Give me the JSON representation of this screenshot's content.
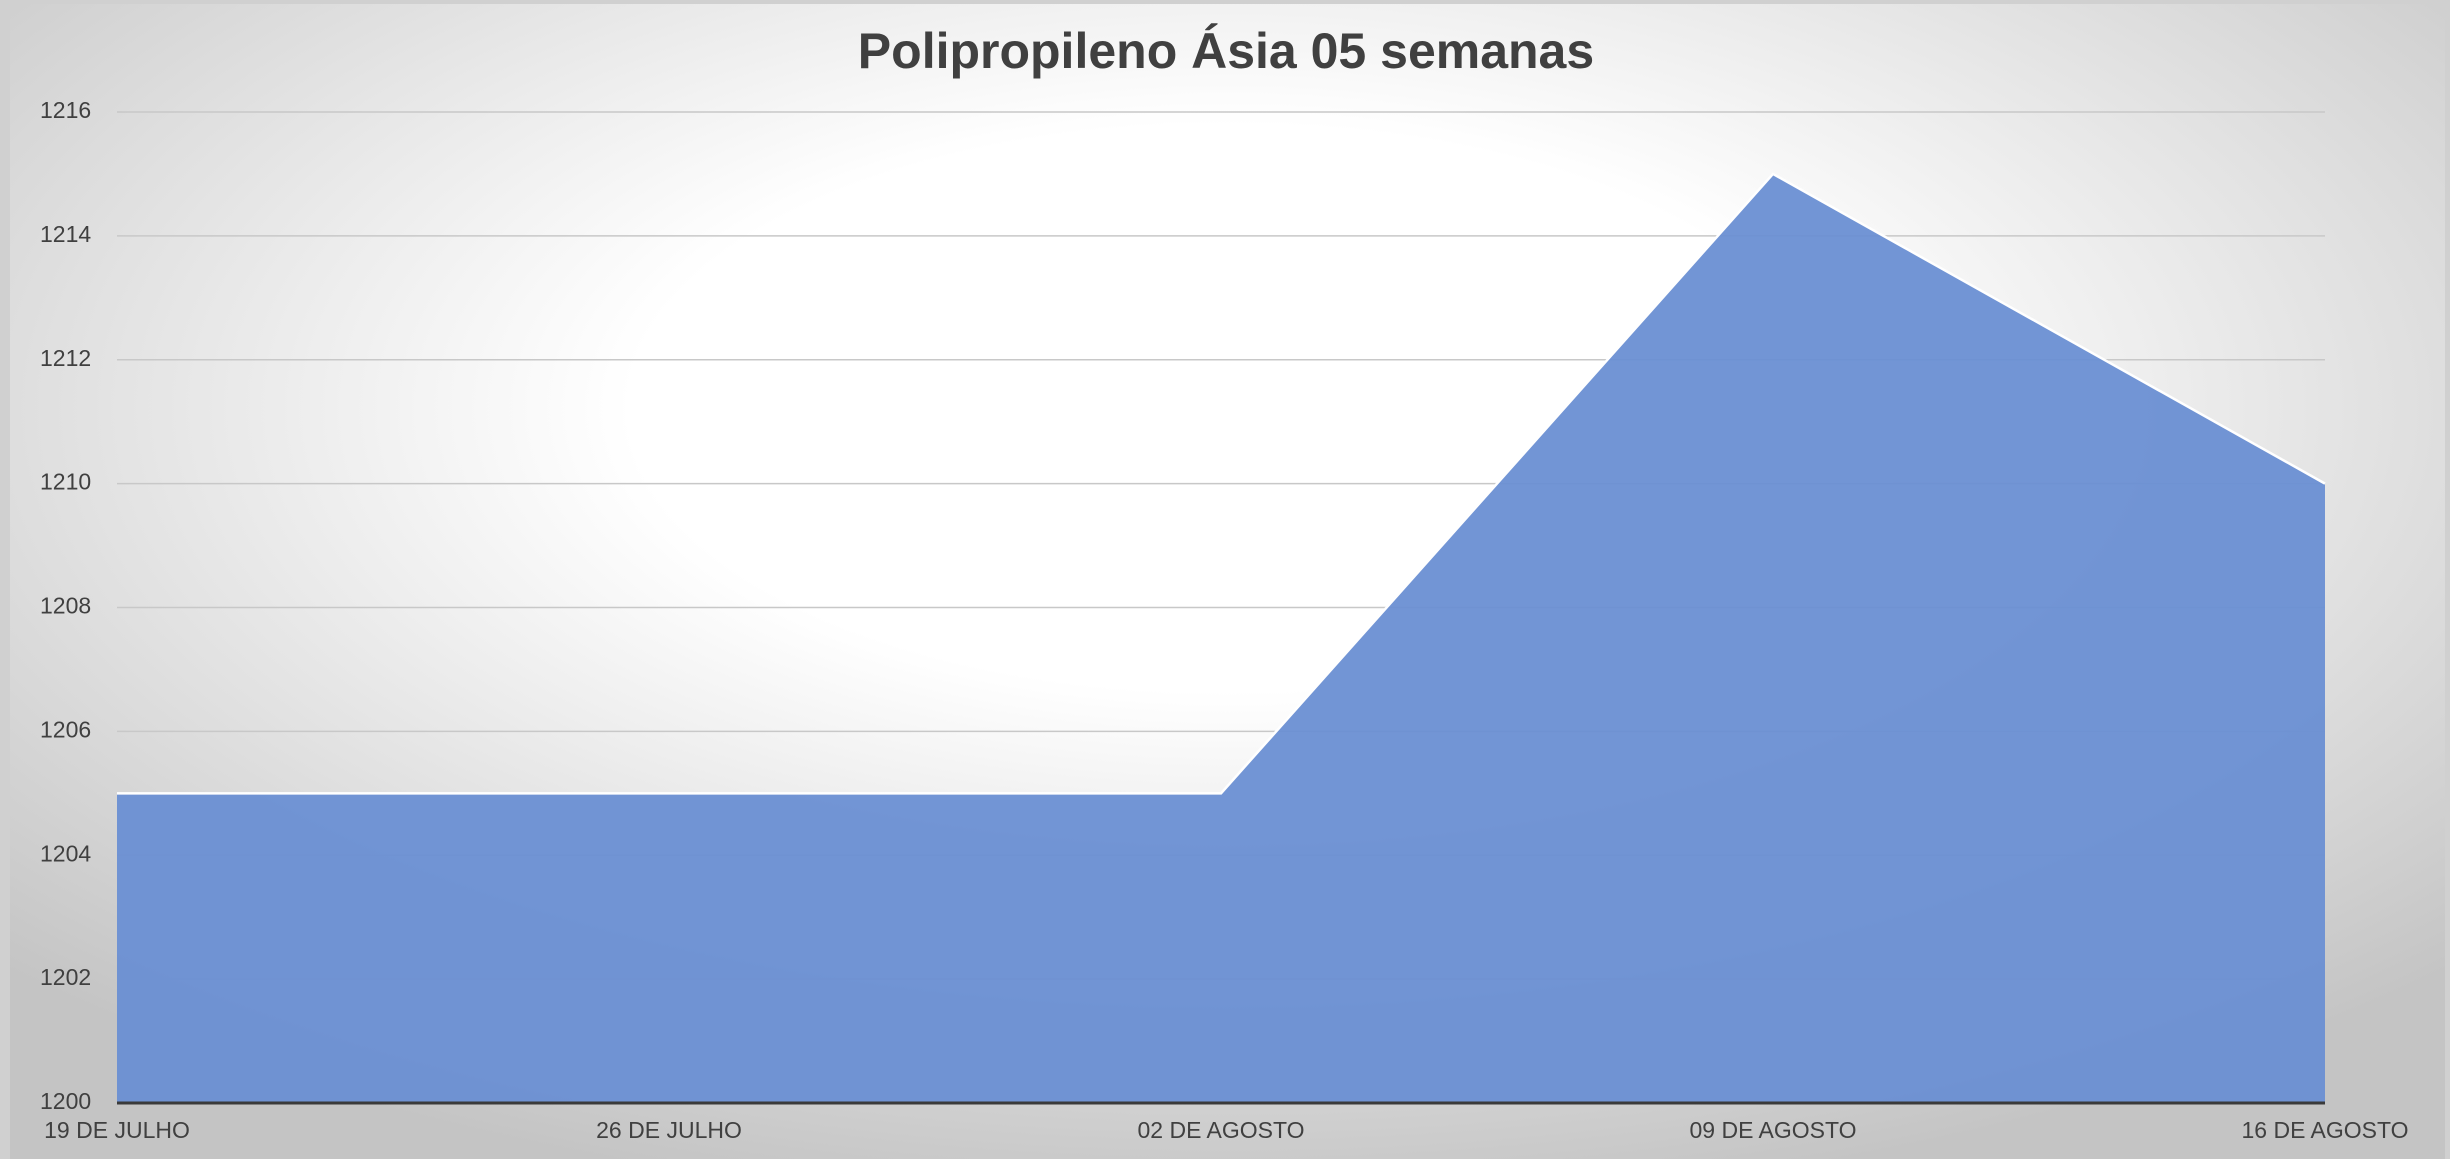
{
  "chart_data": {
    "type": "area",
    "title": "Polipropileno Ásia 05 semanas",
    "categories": [
      "19 DE JULHO",
      "26 DE JULHO",
      "02 DE AGOSTO",
      "09 DE AGOSTO",
      "16 DE AGOSTO"
    ],
    "values": [
      1205,
      1205,
      1205,
      1215,
      1210
    ],
    "color": "#6a8fd3",
    "ylim": [
      1200,
      1216
    ],
    "yticks": [
      1200,
      1202,
      1204,
      1206,
      1208,
      1210,
      1212,
      1214,
      1216
    ],
    "grid": true
  }
}
